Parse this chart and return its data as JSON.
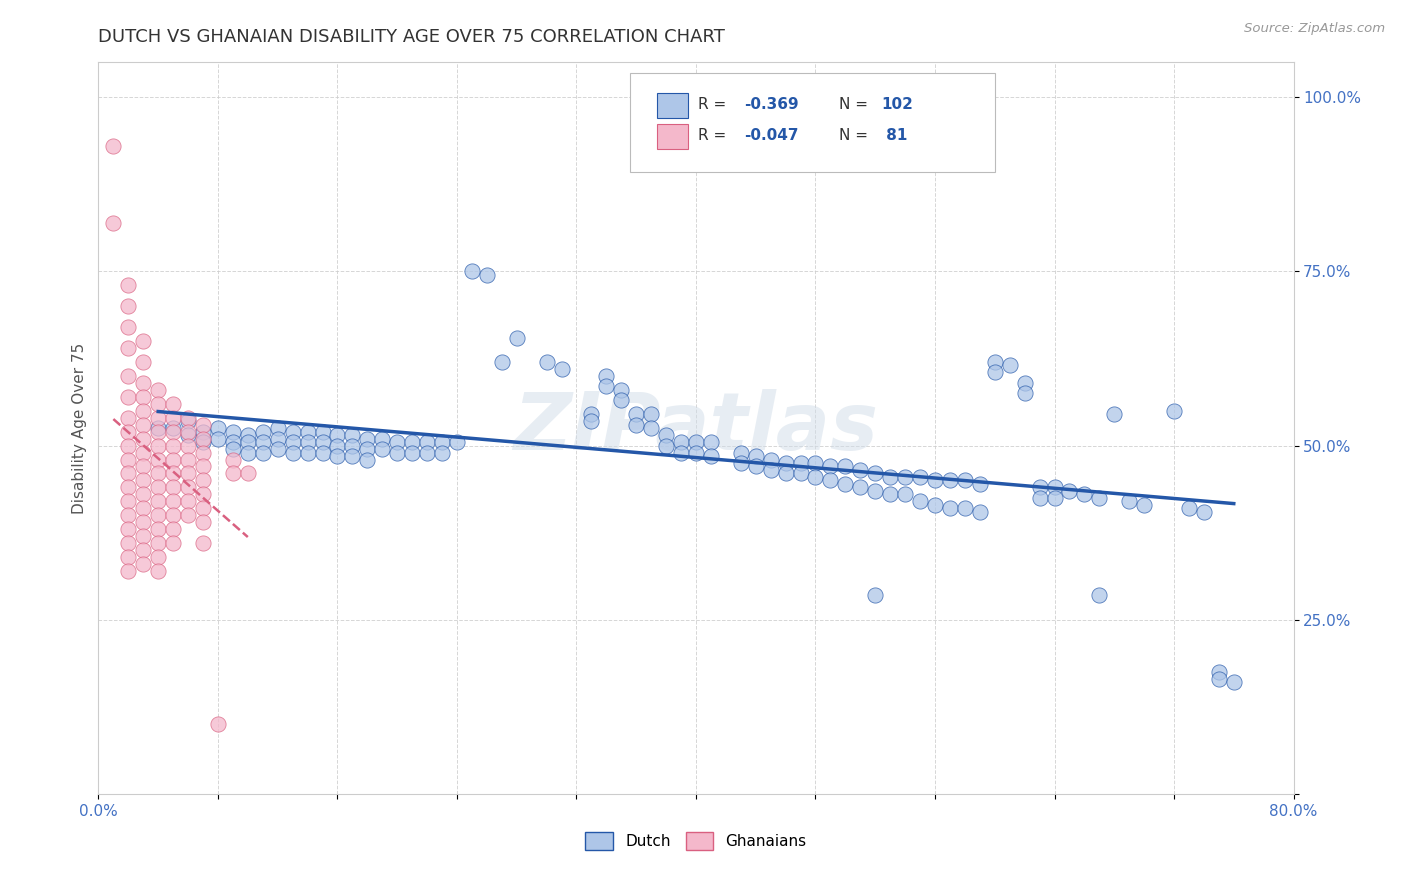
{
  "title": "DUTCH VS GHANAIAN DISABILITY AGE OVER 75 CORRELATION CHART",
  "ylabel": "Disability Age Over 75",
  "source": "Source: ZipAtlas.com",
  "watermark": "ZIPatlas",
  "xlim": [
    0.0,
    0.8
  ],
  "ylim": [
    0.0,
    1.05
  ],
  "dutch_color": "#aec6e8",
  "ghanaian_color": "#f4b8cb",
  "dutch_line_color": "#2457a8",
  "ghanaian_line_color": "#d96080",
  "background_color": "#ffffff",
  "grid_color": "#cccccc",
  "dutch_scatter": [
    [
      0.04,
      0.525
    ],
    [
      0.05,
      0.525
    ],
    [
      0.06,
      0.535
    ],
    [
      0.06,
      0.515
    ],
    [
      0.07,
      0.52
    ],
    [
      0.07,
      0.505
    ],
    [
      0.08,
      0.525
    ],
    [
      0.08,
      0.51
    ],
    [
      0.09,
      0.52
    ],
    [
      0.09,
      0.505
    ],
    [
      0.09,
      0.495
    ],
    [
      0.1,
      0.515
    ],
    [
      0.1,
      0.505
    ],
    [
      0.1,
      0.49
    ],
    [
      0.11,
      0.52
    ],
    [
      0.11,
      0.505
    ],
    [
      0.11,
      0.49
    ],
    [
      0.12,
      0.525
    ],
    [
      0.12,
      0.51
    ],
    [
      0.12,
      0.495
    ],
    [
      0.13,
      0.52
    ],
    [
      0.13,
      0.505
    ],
    [
      0.13,
      0.49
    ],
    [
      0.14,
      0.52
    ],
    [
      0.14,
      0.505
    ],
    [
      0.14,
      0.49
    ],
    [
      0.15,
      0.52
    ],
    [
      0.15,
      0.505
    ],
    [
      0.15,
      0.49
    ],
    [
      0.16,
      0.515
    ],
    [
      0.16,
      0.5
    ],
    [
      0.16,
      0.485
    ],
    [
      0.17,
      0.515
    ],
    [
      0.17,
      0.5
    ],
    [
      0.17,
      0.485
    ],
    [
      0.18,
      0.51
    ],
    [
      0.18,
      0.495
    ],
    [
      0.18,
      0.48
    ],
    [
      0.19,
      0.51
    ],
    [
      0.19,
      0.495
    ],
    [
      0.2,
      0.505
    ],
    [
      0.2,
      0.49
    ],
    [
      0.21,
      0.505
    ],
    [
      0.21,
      0.49
    ],
    [
      0.22,
      0.505
    ],
    [
      0.22,
      0.49
    ],
    [
      0.23,
      0.505
    ],
    [
      0.23,
      0.49
    ],
    [
      0.24,
      0.505
    ],
    [
      0.25,
      0.75
    ],
    [
      0.26,
      0.745
    ],
    [
      0.27,
      0.62
    ],
    [
      0.28,
      0.655
    ],
    [
      0.3,
      0.62
    ],
    [
      0.31,
      0.61
    ],
    [
      0.33,
      0.545
    ],
    [
      0.33,
      0.535
    ],
    [
      0.34,
      0.6
    ],
    [
      0.34,
      0.585
    ],
    [
      0.35,
      0.58
    ],
    [
      0.35,
      0.565
    ],
    [
      0.36,
      0.545
    ],
    [
      0.36,
      0.53
    ],
    [
      0.37,
      0.545
    ],
    [
      0.37,
      0.525
    ],
    [
      0.38,
      0.515
    ],
    [
      0.38,
      0.5
    ],
    [
      0.39,
      0.505
    ],
    [
      0.39,
      0.49
    ],
    [
      0.4,
      0.505
    ],
    [
      0.4,
      0.49
    ],
    [
      0.41,
      0.505
    ],
    [
      0.41,
      0.485
    ],
    [
      0.43,
      0.49
    ],
    [
      0.43,
      0.475
    ],
    [
      0.44,
      0.485
    ],
    [
      0.44,
      0.47
    ],
    [
      0.45,
      0.48
    ],
    [
      0.45,
      0.465
    ],
    [
      0.46,
      0.475
    ],
    [
      0.46,
      0.46
    ],
    [
      0.47,
      0.475
    ],
    [
      0.47,
      0.46
    ],
    [
      0.48,
      0.475
    ],
    [
      0.48,
      0.455
    ],
    [
      0.49,
      0.47
    ],
    [
      0.49,
      0.45
    ],
    [
      0.5,
      0.47
    ],
    [
      0.5,
      0.445
    ],
    [
      0.51,
      0.465
    ],
    [
      0.51,
      0.44
    ],
    [
      0.52,
      0.46
    ],
    [
      0.52,
      0.435
    ],
    [
      0.53,
      0.455
    ],
    [
      0.53,
      0.43
    ],
    [
      0.54,
      0.455
    ],
    [
      0.54,
      0.43
    ],
    [
      0.55,
      0.455
    ],
    [
      0.55,
      0.42
    ],
    [
      0.56,
      0.45
    ],
    [
      0.56,
      0.415
    ],
    [
      0.57,
      0.45
    ],
    [
      0.57,
      0.41
    ],
    [
      0.58,
      0.45
    ],
    [
      0.58,
      0.41
    ],
    [
      0.59,
      0.445
    ],
    [
      0.59,
      0.405
    ],
    [
      0.6,
      0.62
    ],
    [
      0.6,
      0.605
    ],
    [
      0.61,
      0.615
    ],
    [
      0.62,
      0.59
    ],
    [
      0.62,
      0.575
    ],
    [
      0.63,
      0.44
    ],
    [
      0.63,
      0.425
    ],
    [
      0.64,
      0.44
    ],
    [
      0.64,
      0.425
    ],
    [
      0.65,
      0.435
    ],
    [
      0.66,
      0.43
    ],
    [
      0.67,
      0.425
    ],
    [
      0.68,
      0.545
    ],
    [
      0.69,
      0.42
    ],
    [
      0.7,
      0.415
    ],
    [
      0.72,
      0.55
    ],
    [
      0.73,
      0.41
    ],
    [
      0.74,
      0.405
    ],
    [
      0.75,
      0.175
    ],
    [
      0.75,
      0.165
    ],
    [
      0.76,
      0.16
    ],
    [
      0.52,
      0.285
    ],
    [
      0.67,
      0.285
    ]
  ],
  "ghanaian_scatter": [
    [
      0.01,
      0.93
    ],
    [
      0.01,
      0.82
    ],
    [
      0.02,
      0.73
    ],
    [
      0.02,
      0.7
    ],
    [
      0.02,
      0.67
    ],
    [
      0.02,
      0.64
    ],
    [
      0.02,
      0.6
    ],
    [
      0.02,
      0.57
    ],
    [
      0.02,
      0.54
    ],
    [
      0.02,
      0.52
    ],
    [
      0.02,
      0.5
    ],
    [
      0.02,
      0.48
    ],
    [
      0.02,
      0.46
    ],
    [
      0.02,
      0.44
    ],
    [
      0.02,
      0.42
    ],
    [
      0.02,
      0.4
    ],
    [
      0.02,
      0.38
    ],
    [
      0.02,
      0.36
    ],
    [
      0.02,
      0.34
    ],
    [
      0.02,
      0.32
    ],
    [
      0.03,
      0.65
    ],
    [
      0.03,
      0.62
    ],
    [
      0.03,
      0.59
    ],
    [
      0.03,
      0.57
    ],
    [
      0.03,
      0.55
    ],
    [
      0.03,
      0.53
    ],
    [
      0.03,
      0.51
    ],
    [
      0.03,
      0.49
    ],
    [
      0.03,
      0.47
    ],
    [
      0.03,
      0.45
    ],
    [
      0.03,
      0.43
    ],
    [
      0.03,
      0.41
    ],
    [
      0.03,
      0.39
    ],
    [
      0.03,
      0.37
    ],
    [
      0.03,
      0.35
    ],
    [
      0.03,
      0.33
    ],
    [
      0.04,
      0.58
    ],
    [
      0.04,
      0.56
    ],
    [
      0.04,
      0.54
    ],
    [
      0.04,
      0.52
    ],
    [
      0.04,
      0.5
    ],
    [
      0.04,
      0.48
    ],
    [
      0.04,
      0.46
    ],
    [
      0.04,
      0.44
    ],
    [
      0.04,
      0.42
    ],
    [
      0.04,
      0.4
    ],
    [
      0.04,
      0.38
    ],
    [
      0.04,
      0.36
    ],
    [
      0.04,
      0.34
    ],
    [
      0.04,
      0.32
    ],
    [
      0.05,
      0.56
    ],
    [
      0.05,
      0.54
    ],
    [
      0.05,
      0.52
    ],
    [
      0.05,
      0.5
    ],
    [
      0.05,
      0.48
    ],
    [
      0.05,
      0.46
    ],
    [
      0.05,
      0.44
    ],
    [
      0.05,
      0.42
    ],
    [
      0.05,
      0.4
    ],
    [
      0.05,
      0.38
    ],
    [
      0.05,
      0.36
    ],
    [
      0.06,
      0.54
    ],
    [
      0.06,
      0.52
    ],
    [
      0.06,
      0.5
    ],
    [
      0.06,
      0.48
    ],
    [
      0.06,
      0.46
    ],
    [
      0.06,
      0.44
    ],
    [
      0.06,
      0.42
    ],
    [
      0.06,
      0.4
    ],
    [
      0.07,
      0.53
    ],
    [
      0.07,
      0.51
    ],
    [
      0.07,
      0.49
    ],
    [
      0.07,
      0.47
    ],
    [
      0.07,
      0.45
    ],
    [
      0.07,
      0.43
    ],
    [
      0.07,
      0.41
    ],
    [
      0.07,
      0.39
    ],
    [
      0.07,
      0.36
    ],
    [
      0.08,
      0.1
    ],
    [
      0.09,
      0.48
    ],
    [
      0.09,
      0.46
    ],
    [
      0.1,
      0.46
    ]
  ]
}
